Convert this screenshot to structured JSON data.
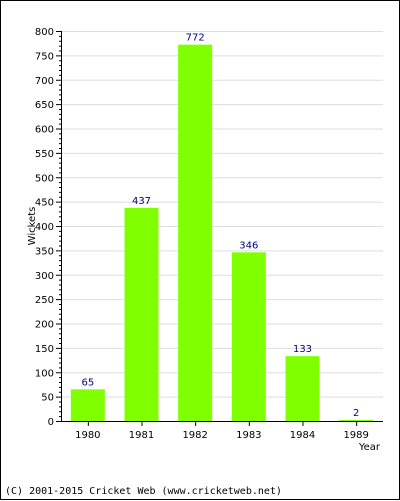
{
  "chart_data": {
    "type": "bar",
    "categories": [
      "1980",
      "1981",
      "1982",
      "1983",
      "1984",
      "1989"
    ],
    "values": [
      65,
      437,
      772,
      346,
      133,
      2
    ],
    "data_labels": [
      "65",
      "437",
      "772",
      "346",
      "133",
      "2"
    ],
    "ylabel": "Wickets",
    "xlabel": "Year",
    "ylim": [
      0,
      800
    ],
    "yticks": [
      0,
      50,
      100,
      150,
      200,
      250,
      300,
      350,
      400,
      450,
      500,
      550,
      600,
      650,
      700,
      750,
      800
    ],
    "grid": true,
    "legend": "none"
  },
  "colors": {
    "bar": "#80ff00",
    "data_label": "#000080",
    "grid": "#dddddd",
    "axis": "#000000"
  },
  "footer": "(C) 2001-2015 Cricket Web (www.cricketweb.net)"
}
